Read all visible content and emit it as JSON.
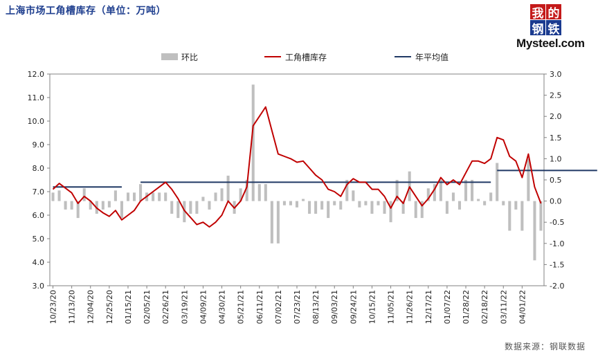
{
  "title": "上海市场工角槽库存（单位：万吨）",
  "logo": {
    "c1": "我",
    "c2": "的",
    "c3": "钢",
    "c4": "铁",
    "en": "Mysteel.com"
  },
  "source": "数据来源：钢联数据",
  "colors": {
    "bars": "#bfbfbf",
    "inventory": "#c00000",
    "avg": "#1f3864",
    "title": "#1f3f8f"
  },
  "chart_data": {
    "type": "bar+line",
    "legend": {
      "position": "top",
      "entries": [
        "环比",
        "工角槽库存",
        "年平均值"
      ]
    },
    "left_axis": {
      "min": 3.0,
      "max": 12.0,
      "step": 1.0,
      "ticks": [
        "12.0",
        "11.0",
        "10.0",
        "9.0",
        "8.0",
        "7.0",
        "6.0",
        "5.0",
        "4.0",
        "3.0"
      ]
    },
    "right_axis": {
      "min": -2.0,
      "max": 3.0,
      "step": 0.5,
      "ticks": [
        "3.0",
        "2.5",
        "2.0",
        "1.5",
        "1.0",
        "0.5",
        "0.0",
        "-0.5",
        "-1.0",
        "-1.5",
        "-2.0"
      ]
    },
    "x_labels": [
      "10/23/20",
      "11/13/20",
      "12/04/20",
      "12/25/20",
      "01/15/21",
      "02/05/21",
      "02/26/21",
      "03/19/21",
      "04/09/21",
      "04/30/21",
      "05/21/21",
      "06/11/21",
      "07/02/21",
      "07/23/21",
      "08/13/21",
      "09/03/21",
      "09/24/21",
      "10/15/21",
      "11/05/21",
      "11/26/21",
      "12/17/21",
      "01/07/22",
      "01/28/22",
      "02/18/22",
      "03/11/22",
      "04/01/22"
    ],
    "inventory": [
      7.1,
      7.35,
      7.15,
      6.95,
      6.5,
      6.8,
      6.6,
      6.3,
      6.1,
      5.95,
      6.2,
      5.8,
      6.0,
      6.2,
      6.6,
      6.8,
      7.0,
      7.2,
      7.4,
      7.1,
      6.7,
      6.2,
      5.9,
      5.6,
      5.7,
      5.5,
      5.7,
      6.0,
      6.6,
      6.3,
      6.6,
      7.2,
      9.8,
      10.2,
      10.6,
      9.6,
      8.6,
      8.5,
      8.4,
      8.25,
      8.3,
      8.0,
      7.7,
      7.5,
      7.1,
      7.0,
      6.8,
      7.3,
      7.55,
      7.4,
      7.4,
      7.1,
      7.1,
      6.8,
      6.3,
      6.8,
      6.5,
      7.2,
      6.8,
      6.4,
      6.7,
      7.1,
      7.6,
      7.3,
      7.5,
      7.3,
      7.8,
      8.3,
      8.3,
      8.2,
      8.4,
      9.3,
      9.2,
      8.5,
      8.3,
      7.6,
      8.6,
      7.2,
      6.5
    ],
    "wow": [
      0.2,
      0.25,
      -0.2,
      -0.2,
      -0.4,
      0.3,
      -0.2,
      -0.3,
      -0.2,
      -0.15,
      0.25,
      -0.4,
      0.2,
      0.2,
      0.4,
      0.2,
      0.2,
      0.2,
      0.2,
      -0.3,
      -0.4,
      -0.5,
      -0.3,
      -0.3,
      0.1,
      -0.2,
      0.2,
      0.3,
      0.6,
      -0.3,
      0.3,
      0.5,
      2.75,
      0.4,
      0.4,
      -1.0,
      -1.0,
      -0.1,
      -0.1,
      -0.15,
      0.05,
      -0.3,
      -0.3,
      -0.2,
      -0.4,
      -0.1,
      -0.2,
      0.5,
      0.25,
      -0.15,
      -0.1,
      -0.3,
      -0.1,
      -0.3,
      -0.5,
      0.5,
      -0.3,
      0.7,
      -0.4,
      -0.4,
      0.3,
      0.4,
      0.5,
      -0.3,
      0.2,
      -0.2,
      0.5,
      0.5,
      0.05,
      -0.1,
      0.2,
      0.9,
      -0.1,
      -0.7,
      -0.2,
      -0.7,
      1.0,
      -1.4,
      -0.7
    ],
    "annual_avg": [
      {
        "from": 0,
        "to": 11,
        "value": 7.2
      },
      {
        "from": 14,
        "to": 70,
        "value": 7.4
      },
      {
        "from": 71,
        "to": 87,
        "value": 7.9
      }
    ]
  }
}
